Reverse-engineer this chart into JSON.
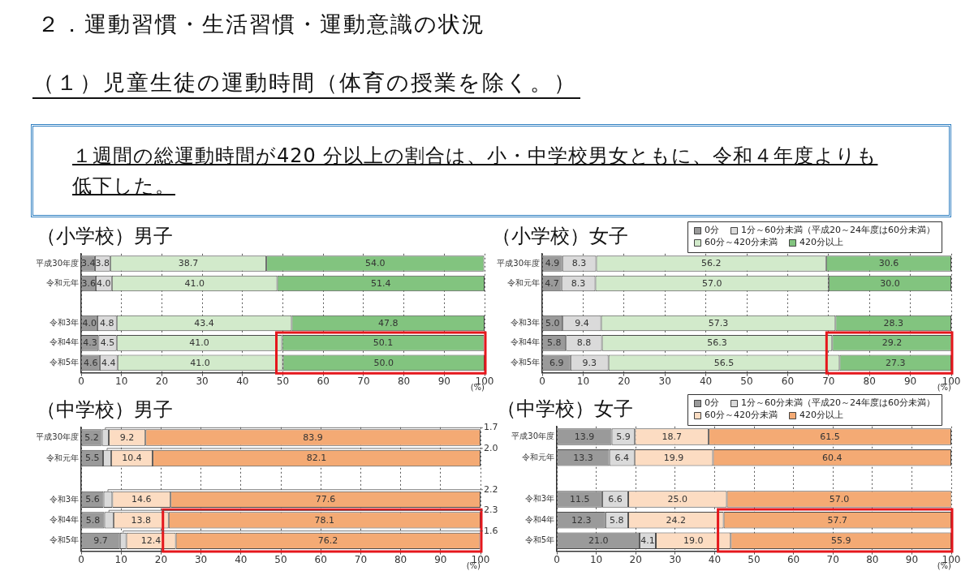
{
  "chart_data": [
    {
      "type": "bar",
      "orientation": "horizontal",
      "stacked": true,
      "title": "（小学校）男子",
      "xlabel": "(%)",
      "annotations": [
        "２．運動習慣・生活習慣・運動意識の状況",
        "（１）児童生徒の運動時間（体育の授業を除く。）",
        "１週間の総運動時間が420 分以上の割合は、小・中学校男女ともに、令和４年度よりも低下した。"
      ],
      "categories": [
        "平成30年度",
        "令和元年",
        null,
        "令和3年",
        "令和4年",
        "令和5年"
      ],
      "series": [
        {
          "color": "#9a9a9a",
          "values": [
            3.4,
            3.6,
            null,
            4.0,
            4.3,
            4.6
          ],
          "value_labels": [
            "3.4",
            "3.6",
            null,
            "4.0",
            "4.3",
            "4.6"
          ]
        },
        {
          "color": "#dadada",
          "values": [
            3.8,
            4.0,
            null,
            4.8,
            4.5,
            4.4
          ],
          "value_labels": [
            "3.8",
            "4.0",
            null,
            "4.8",
            "4.5",
            "4.4"
          ]
        },
        {
          "color": "#d2eacb",
          "values": [
            38.7,
            41.0,
            null,
            43.4,
            41.0,
            41.0
          ],
          "value_labels": [
            "38.7",
            "41.0",
            null,
            "43.4",
            "41.0",
            "41.0"
          ]
        },
        {
          "color": "#82c47f",
          "values": [
            54.0,
            51.4,
            null,
            47.8,
            50.1,
            50.0
          ],
          "value_labels": [
            "54.0",
            "51.4",
            null,
            "47.8",
            "50.1",
            "50.0"
          ]
        }
      ],
      "xlim": [
        0,
        100
      ],
      "xticks": [
        0,
        10,
        20,
        30,
        40,
        50,
        60,
        70,
        80,
        90,
        100
      ],
      "grid": "x"
    },
    {
      "type": "bar",
      "orientation": "horizontal",
      "stacked": true,
      "title": "（小学校）女子",
      "xlabel": "(%)",
      "legend": "top right",
      "categories": [
        "平成30年度",
        "令和元年",
        null,
        "令和3年",
        "令和4年",
        "令和5年"
      ],
      "series": [
        {
          "name": "0分",
          "color": "#9a9a9a",
          "values": [
            4.9,
            4.7,
            null,
            5.0,
            5.8,
            6.9
          ],
          "value_labels": [
            "4.9",
            "4.7",
            null,
            "5.0",
            "5.8",
            "6.9"
          ]
        },
        {
          "name": "1分～60分未満（平成20～24年度は60分未満）",
          "color": "#dadada",
          "values": [
            8.3,
            8.3,
            null,
            9.4,
            8.8,
            9.3
          ],
          "value_labels": [
            "8.3",
            "8.3",
            null,
            "9.4",
            "8.8",
            "9.3"
          ]
        },
        {
          "name": "60分～420分未満",
          "color": "#d2eacb",
          "values": [
            56.2,
            57.0,
            null,
            57.3,
            56.3,
            56.5
          ],
          "value_labels": [
            "56.2",
            "57.0",
            null,
            "57.3",
            "56.3",
            "56.5"
          ]
        },
        {
          "name": "420分以上",
          "color": "#82c47f",
          "values": [
            30.6,
            30.0,
            null,
            28.3,
            29.2,
            27.3
          ],
          "value_labels": [
            "30.6",
            "30.0",
            null,
            "28.3",
            "29.2",
            "27.3"
          ]
        }
      ],
      "xlim": [
        0,
        100
      ],
      "xticks": [
        0,
        10,
        20,
        30,
        40,
        50,
        60,
        70,
        80,
        90,
        100
      ],
      "grid": "x"
    },
    {
      "type": "bar",
      "orientation": "horizontal",
      "stacked": true,
      "title": "（中学校）男子",
      "xlabel": "(%)",
      "categories": [
        "平成30年度",
        "令和元年",
        null,
        "令和3年",
        "令和4年",
        "令和5年"
      ],
      "series": [
        {
          "color": "#9a9a9a",
          "values": [
            5.2,
            5.5,
            null,
            5.6,
            5.8,
            9.7
          ],
          "value_labels": [
            "5.2",
            "5.5",
            null,
            "5.6",
            "5.8",
            "9.7"
          ]
        },
        {
          "color": "#dadada",
          "values": [
            1.7,
            2.0,
            null,
            2.2,
            2.3,
            1.6
          ],
          "value_labels": [
            "1.7",
            "2.0",
            null,
            "2.2",
            "2.3",
            "1.6"
          ]
        },
        {
          "color": "#fcdcc2",
          "values": [
            9.2,
            10.4,
            null,
            14.6,
            13.8,
            12.4
          ],
          "value_labels": [
            "9.2",
            "10.4",
            null,
            "14.6",
            "13.8",
            "12.4"
          ]
        },
        {
          "color": "#f4aa74",
          "values": [
            83.9,
            82.1,
            null,
            77.6,
            78.1,
            76.2
          ],
          "value_labels": [
            "83.9",
            "82.1",
            null,
            "77.6",
            "78.1",
            "76.2"
          ]
        }
      ],
      "xlim": [
        0,
        100
      ],
      "xticks": [
        0,
        10,
        20,
        30,
        40,
        50,
        60,
        70,
        80,
        90,
        100
      ],
      "grid": "x"
    },
    {
      "type": "bar",
      "orientation": "horizontal",
      "stacked": true,
      "title": "（中学校）女子",
      "xlabel": "(%)",
      "legend": "top right",
      "categories": [
        "平成30年度",
        "令和元年",
        null,
        "令和3年",
        "令和4年",
        "令和5年"
      ],
      "series": [
        {
          "name": "0分",
          "color": "#9a9a9a",
          "values": [
            13.9,
            13.3,
            null,
            11.5,
            12.3,
            21.0
          ],
          "value_labels": [
            "13.9",
            "13.3",
            null,
            "11.5",
            "12.3",
            "21.0"
          ]
        },
        {
          "name": "1分～60分未満（平成20～24年度は60分未満）",
          "color": "#dadada",
          "values": [
            5.9,
            6.4,
            null,
            6.6,
            5.8,
            4.1
          ],
          "value_labels": [
            "5.9",
            "6.4",
            null,
            "6.6",
            "5.8",
            "4.1"
          ]
        },
        {
          "name": "60分～420分未満",
          "color": "#fcdcc2",
          "values": [
            18.7,
            19.9,
            null,
            25.0,
            24.2,
            19.0
          ],
          "value_labels": [
            "18.7",
            "19.9",
            null,
            "25.0",
            "24.2",
            "19.0"
          ]
        },
        {
          "name": "420分以上",
          "color": "#f4aa74",
          "values": [
            61.5,
            60.4,
            null,
            57.0,
            57.7,
            55.9
          ],
          "value_labels": [
            "61.5",
            "60.4",
            null,
            "57.0",
            "57.7",
            "55.9"
          ]
        }
      ],
      "xlim": [
        0,
        100
      ],
      "xticks": [
        0,
        10,
        20,
        30,
        40,
        50,
        60,
        70,
        80,
        90,
        100
      ],
      "grid": "x"
    }
  ]
}
